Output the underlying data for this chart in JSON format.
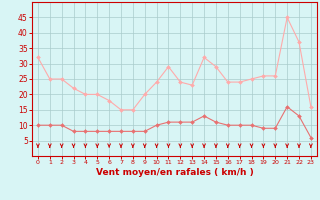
{
  "x": [
    0,
    1,
    2,
    3,
    4,
    5,
    6,
    7,
    8,
    9,
    10,
    11,
    12,
    13,
    14,
    15,
    16,
    17,
    18,
    19,
    20,
    21,
    22,
    23
  ],
  "wind_avg": [
    10,
    10,
    10,
    8,
    8,
    8,
    8,
    8,
    8,
    8,
    10,
    11,
    11,
    11,
    13,
    11,
    10,
    10,
    10,
    9,
    9,
    16,
    13,
    6
  ],
  "wind_gust": [
    32,
    25,
    25,
    22,
    20,
    20,
    18,
    15,
    15,
    20,
    24,
    29,
    24,
    23,
    32,
    29,
    24,
    24,
    25,
    26,
    26,
    45,
    37,
    16
  ],
  "line_color_avg": "#e87070",
  "line_color_gust": "#ffaaaa",
  "marker_color": "#cc0000",
  "arrow_color": "#cc0000",
  "bg_color": "#d8f5f5",
  "grid_color": "#aacccc",
  "xlabel": "Vent moyen/en rafales ( km/h )",
  "xlabel_color": "#cc0000",
  "tick_color": "#cc0000",
  "spine_color": "#cc0000",
  "ylim": [
    0,
    50
  ],
  "yticks": [
    5,
    10,
    15,
    20,
    25,
    30,
    35,
    40,
    45
  ],
  "xlim": [
    -0.5,
    23.5
  ]
}
